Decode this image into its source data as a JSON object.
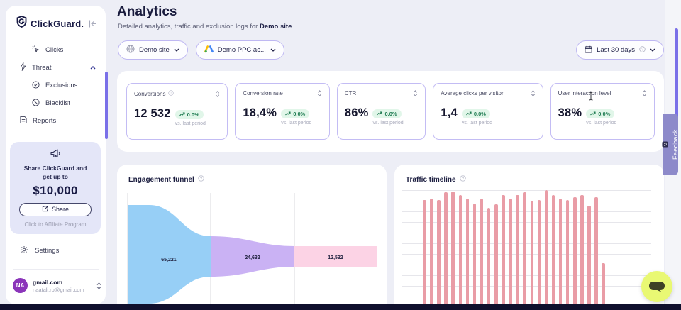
{
  "app": {
    "brand": "ClickGuard."
  },
  "sidebar": {
    "collapse_icon": "collapse-sidebar",
    "items": [
      {
        "label": "Clicks",
        "icon": "cursor-click"
      },
      {
        "label": "Threat",
        "icon": "lightning",
        "expanded": true
      },
      {
        "label": "Exclusions",
        "icon": "check-circle"
      },
      {
        "label": "Blacklist",
        "icon": "ban"
      },
      {
        "label": "Reports",
        "icon": "document"
      }
    ],
    "promo": {
      "line1": "Share ClickGuard and",
      "line2": "get up to",
      "amount": "$10,000",
      "button_label": "Share",
      "footer": "Click to Affiliate Program"
    },
    "settings_label": "Settings",
    "account": {
      "initials": "NA",
      "title": "gmail.com",
      "email": "naatali.ro@gmail.com"
    }
  },
  "header": {
    "title": "Analytics",
    "subtitle_prefix": "Detailed analytics, traffic and exclusion logs for ",
    "subtitle_site": "Demo site"
  },
  "filters": {
    "site_selector": "Demo site",
    "account_selector": "Demo PPC ac...",
    "date_range": "Last 30 days"
  },
  "kpis": [
    {
      "label": "Conversions",
      "value": "12 532",
      "change": "0.0%",
      "compare": "vs. last period"
    },
    {
      "label": "Conversion rate",
      "value": "18,4%",
      "change": "0.0%",
      "compare": "vs. last period"
    },
    {
      "label": "CTR",
      "value": "86%",
      "change": "0.0%",
      "compare": "vs. last period"
    },
    {
      "label": "Average clicks per visitor",
      "value": "1,4",
      "change": "0.0%",
      "compare": "vs. last period"
    },
    {
      "label": "User interaction level",
      "value": "38%",
      "change": "0.0%",
      "compare": "vs. last period"
    }
  ],
  "feedback_tab_label": "Feedback",
  "colors": {
    "accent_purple_border": "#beb7f2",
    "scrollbar_purple": "#7a70e8",
    "badge_green_bg": "#e1f6e9",
    "badge_green_text": "#1d7a50",
    "feedback_tab_bg": "#8d8aca",
    "chat_button_bg": "#e9f873",
    "bottom_bar": "#10102d"
  },
  "chart_data": [
    {
      "type": "funnel",
      "title": "Engagement funnel",
      "segments": [
        {
          "label": "65,221",
          "value": 65221,
          "color": "#97cff6"
        },
        {
          "label": "24,632",
          "value": 24632,
          "color": "#cab2f4"
        },
        {
          "label": "12,532",
          "value": 12532,
          "color": "#fcd3e5"
        }
      ],
      "divider_color": "#d9d9de"
    },
    {
      "type": "bar",
      "title": "Traffic timeline",
      "bar_color": "#e99ca6",
      "grid": true,
      "note": "x/y axis labels are cut off below the viewport; values are % of visible plot height",
      "values_pct": [
        3,
        92,
        93,
        92,
        98,
        99,
        96,
        93,
        89,
        93,
        85,
        88,
        96,
        93,
        96,
        98,
        91,
        92,
        100,
        96,
        93,
        92,
        94,
        96,
        87,
        94,
        39
      ]
    }
  ]
}
